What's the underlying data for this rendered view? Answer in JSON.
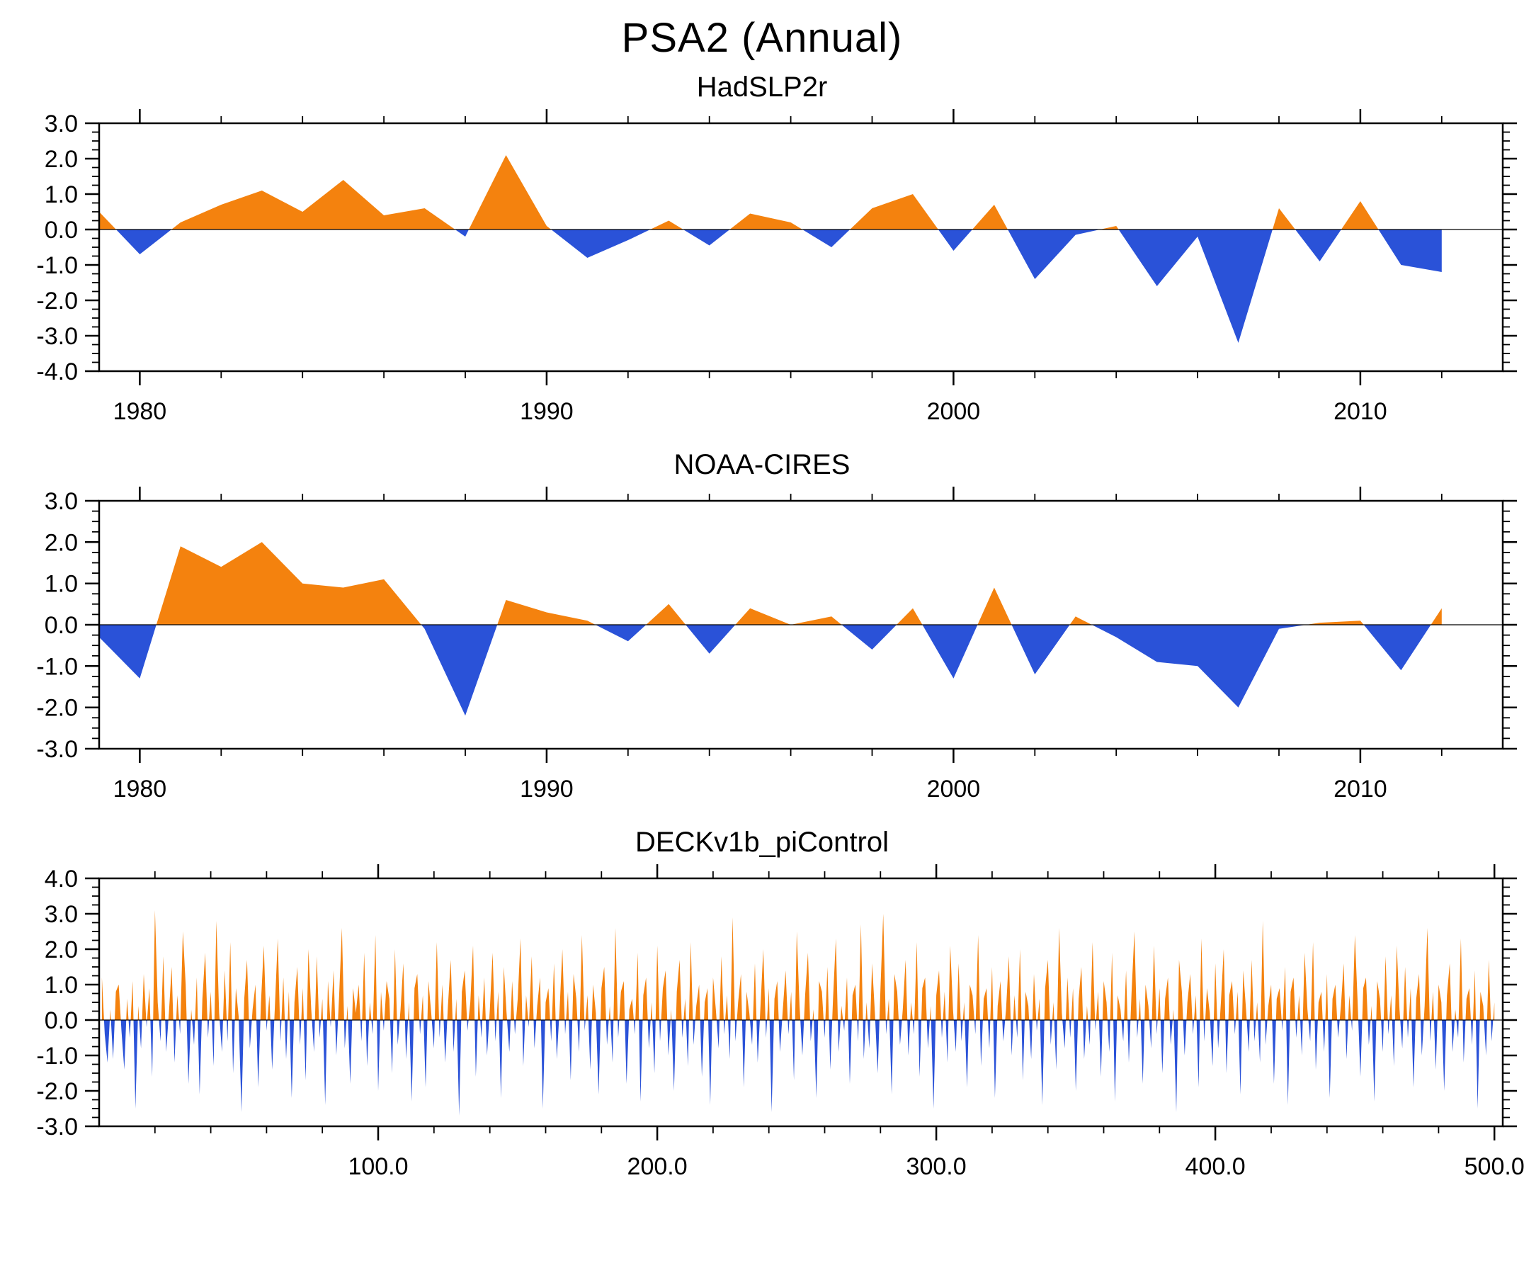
{
  "title": "PSA2 (Annual)",
  "colors": {
    "positive": "#f4820e",
    "negative": "#2a52d8"
  },
  "chart_data": [
    {
      "type": "area",
      "title": "HadSLP2r",
      "x_start": 1979,
      "x_step": 1,
      "xlim": [
        1979,
        2013.5
      ],
      "ylim": [
        -4,
        3
      ],
      "yticks": [
        3,
        2,
        1,
        0,
        -1,
        -2,
        -3,
        -4
      ],
      "ytick_labels": [
        "3.0",
        "2.0",
        "1.0",
        "0.0",
        "-1.0",
        "-2.0",
        "-3.0",
        "-4.0"
      ],
      "xticks": [
        1980,
        1990,
        2000,
        2010
      ],
      "xtick_labels": [
        "1980",
        "1990",
        "2000",
        "2010"
      ],
      "x_minor_start": 1980,
      "x_minor_step": 2,
      "y_minor_step": 0.25,
      "values": [
        0.5,
        -0.7,
        0.2,
        0.7,
        1.1,
        0.5,
        1.4,
        0.4,
        0.6,
        -0.2,
        2.1,
        0.1,
        -0.8,
        -0.3,
        0.25,
        -0.45,
        0.45,
        0.2,
        -0.5,
        0.6,
        1.0,
        -0.6,
        0.7,
        -1.4,
        -0.15,
        0.1,
        -1.6,
        -0.2,
        -3.2,
        0.6,
        -0.9,
        0.8,
        -1.0,
        -1.2
      ]
    },
    {
      "type": "area",
      "title": "NOAA-CIRES",
      "x_start": 1979,
      "x_step": 1,
      "xlim": [
        1979,
        2013.5
      ],
      "ylim": [
        -3,
        3
      ],
      "yticks": [
        3,
        2,
        1,
        0,
        -1,
        -2,
        -3
      ],
      "ytick_labels": [
        "3.0",
        "2.0",
        "1.0",
        "0.0",
        "-1.0",
        "-2.0",
        "-3.0"
      ],
      "xticks": [
        1980,
        1990,
        2000,
        2010
      ],
      "xtick_labels": [
        "1980",
        "1990",
        "2000",
        "2010"
      ],
      "x_minor_start": 1980,
      "x_minor_step": 2,
      "y_minor_step": 0.25,
      "values": [
        -0.3,
        -1.3,
        1.9,
        1.4,
        2.0,
        1.0,
        0.9,
        1.1,
        -0.1,
        -2.2,
        0.6,
        0.3,
        0.1,
        -0.4,
        0.5,
        -0.7,
        0.4,
        0.0,
        0.2,
        -0.6,
        0.4,
        -1.3,
        0.9,
        -1.2,
        0.2,
        -0.3,
        -0.9,
        -1.0,
        -2.0,
        -0.1,
        0.05,
        0.1,
        -1.1,
        0.4
      ]
    },
    {
      "type": "area",
      "title": "DECKv1b_piControl",
      "x_start": 1,
      "x_step": 1,
      "xlim": [
        0,
        503
      ],
      "ylim": [
        -3,
        4
      ],
      "yticks": [
        4,
        3,
        2,
        1,
        0,
        -1,
        -2,
        -3
      ],
      "ytick_labels": [
        "4.0",
        "3.0",
        "2.0",
        "1.0",
        "0.0",
        "-1.0",
        "-2.0",
        "-3.0"
      ],
      "xticks": [
        100,
        200,
        300,
        400,
        500
      ],
      "xtick_labels": [
        "100.0",
        "200.0",
        "300.0",
        "400.0",
        "500.0"
      ],
      "x_minor_start": 20,
      "x_minor_step": 20,
      "y_minor_step": 0.25,
      "values": [
        1.2,
        -0.4,
        -1.2,
        0.3,
        -1.1,
        0.8,
        1.0,
        -0.3,
        -1.4,
        0.6,
        -0.5,
        1.1,
        -2.5,
        0.4,
        -0.8,
        1.3,
        -0.2,
        0.9,
        -1.6,
        3.1,
        0.5,
        -0.6,
        1.8,
        -0.9,
        0.2,
        1.5,
        -1.2,
        0.7,
        -0.4,
        2.5,
        1.0,
        -1.8,
        0.3,
        -0.7,
        1.2,
        -2.1,
        0.6,
        1.9,
        -0.5,
        0.8,
        -1.3,
        2.8,
        0.2,
        -0.9,
        1.4,
        -0.6,
        2.2,
        -1.5,
        0.9,
        0.1,
        -2.6,
        0.6,
        1.7,
        -0.8,
        0.3,
        1.0,
        -1.9,
        0.5,
        2.1,
        -0.3,
        0.7,
        -1.4,
        0.4,
        2.3,
        -0.6,
        1.2,
        -1.1,
        0.8,
        -2.2,
        0.5,
        1.5,
        -0.7,
        0.9,
        -1.7,
        2.0,
        0.3,
        -0.9,
        1.8,
        -0.5,
        0.6,
        -2.4,
        1.1,
        -0.2,
        1.4,
        -1.0,
        0.7,
        2.6,
        -0.8,
        0.4,
        -1.8,
        0.9,
        0.2,
        1.0,
        -0.6,
        1.9,
        -1.3,
        0.5,
        -0.4,
        2.4,
        -2.0,
        0.8,
        -0.3,
        1.1,
        0.6,
        -1.5,
        2.0,
        -0.7,
        0.3,
        1.6,
        -1.1,
        0.5,
        -2.3,
        0.9,
        1.3,
        -0.4,
        0.7,
        -1.9,
        1.1,
        0.2,
        -0.8,
        2.2,
        -0.5,
        1.0,
        -1.2,
        0.4,
        1.7,
        -0.9,
        0.6,
        -2.7,
        0.8,
        1.4,
        -0.3,
        0.5,
        2.1,
        -1.6,
        0.7,
        -0.5,
        1.2,
        -1.0,
        0.3,
        1.9,
        -0.6,
        0.8,
        -2.2,
        1.5,
        0.2,
        -0.9,
        1.1,
        -0.4,
        0.6,
        2.3,
        -1.3,
        0.7,
        -0.2,
        1.8,
        -0.8,
        0.4,
        1.2,
        -2.5,
        0.5,
        0.9,
        -0.6,
        1.6,
        -1.1,
        0.3,
        2.0,
        -0.4,
        0.8,
        -1.7,
        1.3,
        0.6,
        -0.9,
        2.4,
        -0.3,
        0.7,
        -1.4,
        1.0,
        0.2,
        -2.1,
        0.9,
        1.5,
        -0.7,
        0.4,
        -1.2,
        2.6,
        -0.5,
        0.8,
        1.1,
        -1.8,
        0.3,
        0.6,
        -0.4,
        1.9,
        -2.3,
        0.7,
        1.2,
        -0.8,
        0.5,
        -1.5,
        2.1,
        -0.6,
        0.9,
        1.4,
        -1.0,
        0.3,
        -2.0,
        0.8,
        1.7,
        -0.5,
        0.6,
        -1.3,
        2.2,
        -0.7,
        0.4,
        1.0,
        -1.6,
        0.5,
        0.9,
        -2.4,
        1.2,
        0.3,
        -0.8,
        1.8,
        -0.4,
        0.7,
        -1.1,
        2.9,
        -0.6,
        0.5,
        1.3,
        -1.9,
        0.8,
        0.2,
        -0.7,
        1.6,
        -1.2,
        0.4,
        2.0,
        -0.5,
        0.9,
        -2.6,
        0.6,
        1.1,
        -0.9,
        0.3,
        1.4,
        -0.4,
        0.8,
        -1.7,
        2.5,
        0.4,
        -1.0,
        0.7,
        1.9,
        -0.6,
        0.3,
        -2.2,
        1.1,
        0.8,
        -0.5,
        1.5,
        -1.4,
        0.6,
        2.3,
        -0.9,
        0.4,
        -0.3,
        1.2,
        -1.8,
        0.7,
        1.0,
        -0.6,
        2.7,
        -1.1,
        0.5,
        -0.8,
        1.6,
        0.2,
        -1.5,
        0.9,
        3.0,
        -0.4,
        0.6,
        -2.1,
        1.3,
        0.8,
        -0.7,
        0.3,
        1.7,
        -1.0,
        0.5,
        -0.4,
        2.2,
        -1.6,
        0.9,
        1.2,
        -0.8,
        0.4,
        -2.5,
        0.7,
        1.4,
        -0.5,
        0.8,
        -1.2,
        2.1,
        0.3,
        -0.9,
        1.6,
        -0.6,
        0.5,
        -1.9,
        1.0,
        0.7,
        -0.4,
        2.4,
        -1.3,
        0.6,
        0.9,
        -0.8,
        1.5,
        -2.2,
        0.4,
        1.1,
        -0.6,
        0.3,
        1.8,
        -1.0,
        0.7,
        -0.5,
        2.0,
        -1.7,
        0.8,
        0.4,
        -1.1,
        1.3,
        -0.3,
        0.6,
        -2.4,
        0.9,
        1.7,
        -0.7,
        0.5,
        -1.4,
        2.6,
        0.2,
        -0.8,
        1.2,
        -0.5,
        0.9,
        -2.0,
        0.6,
        1.5,
        -1.1,
        0.4,
        -0.7,
        2.2,
        -0.3,
        0.8,
        -1.6,
        1.1,
        0.5,
        -0.9,
        1.9,
        -2.3,
        0.7,
        0.3,
        -0.6,
        1.4,
        -1.2,
        0.8,
        2.5,
        -0.5,
        0.6,
        -1.8,
        1.0,
        0.4,
        -0.8,
        2.1,
        -0.4,
        0.9,
        -1.5,
        0.6,
        1.2,
        -0.7,
        0.3,
        -2.6,
        1.7,
        0.8,
        -1.0,
        0.5,
        1.3,
        -0.4,
        0.7,
        -1.9,
        2.3,
        -0.6,
        0.9,
        0.2,
        -1.3,
        1.6,
        -0.8,
        0.5,
        2.0,
        -1.5,
        0.7,
        1.1,
        -0.4,
        0.8,
        -2.1,
        1.4,
        0.3,
        -0.9,
        1.7,
        -0.6,
        0.5,
        -1.2,
        2.8,
        -0.7,
        0.4,
        1.0,
        -1.8,
        0.6,
        0.9,
        -0.3,
        1.5,
        -2.4,
        0.8,
        1.2,
        -0.5,
        0.7,
        -1.0,
        1.9,
        0.3,
        -0.6,
        2.2,
        -1.4,
        0.5,
        0.8,
        -0.9,
        1.3,
        -2.2,
        0.6,
        1.0,
        -0.5,
        0.4,
        1.6,
        -1.1,
        0.7,
        -0.3,
        2.4,
        0.5,
        -1.6,
        0.9,
        1.2,
        -0.7,
        0.4,
        -2.3,
        1.1,
        0.6,
        -0.9,
        1.8,
        -0.4,
        0.7,
        -1.3,
        2.1,
        0.3,
        -0.8,
        1.5,
        -0.5,
        0.9,
        -1.9,
        0.6,
        1.3,
        -1.0,
        0.4,
        2.6,
        -0.6,
        0.8,
        -1.4,
        1.0,
        0.5,
        -2.0,
        0.7,
        1.6,
        -0.9,
        0.3,
        -0.5,
        2.3,
        -1.2,
        0.6,
        0.9,
        -0.7,
        1.4,
        -2.5,
        0.8,
        0.4,
        -1.0,
        1.7,
        -0.6,
        0.5
      ]
    }
  ]
}
